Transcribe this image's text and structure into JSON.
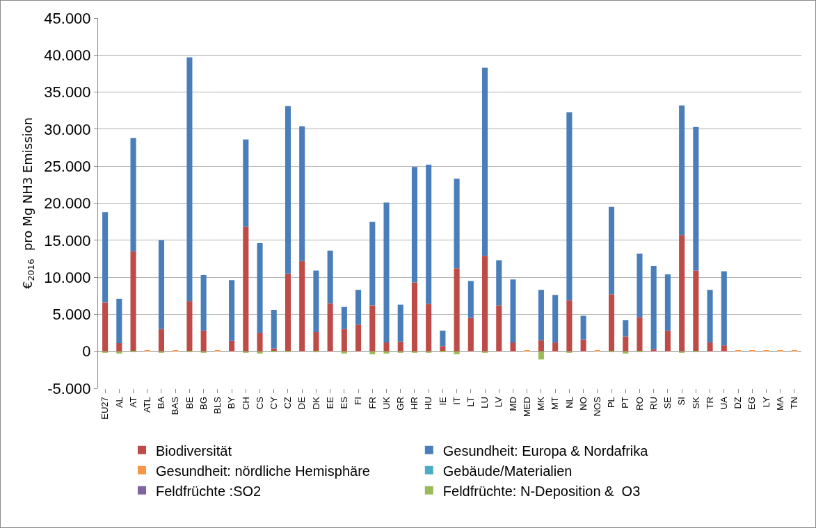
{
  "chart_data": {
    "type": "bar",
    "stacked": true,
    "ylabel": "€$_{2016}$  pro Mg NH3 Emission",
    "categories": [
      "EU27",
      "AL",
      "AT",
      "ATL",
      "BA",
      "BAS",
      "BE",
      "BG",
      "BLS",
      "BY",
      "CH",
      "CS",
      "CY",
      "CZ",
      "DE",
      "DK",
      "EE",
      "ES",
      "FI",
      "FR",
      "UK",
      "GR",
      "HR",
      "HU",
      "IE",
      "IT",
      "LT",
      "LU",
      "LV",
      "MD",
      "MED",
      "MK",
      "MT",
      "NL",
      "NO",
      "NOS",
      "PL",
      "PT",
      "RO",
      "RU",
      "SE",
      "SI",
      "SK",
      "TR",
      "UA",
      "DZ",
      "EG",
      "LY",
      "MA",
      "TN"
    ],
    "series": [
      {
        "name": "Biodiversität",
        "color": "#be4b48",
        "values": [
          6600,
          1100,
          13500,
          null,
          3000,
          null,
          6800,
          2800,
          null,
          1400,
          16800,
          2500,
          400,
          10500,
          12200,
          2600,
          6500,
          3000,
          3600,
          6200,
          1200,
          1300,
          9300,
          6400,
          700,
          11200,
          4500,
          12900,
          6200,
          1200,
          null,
          1500,
          1200,
          6900,
          1600,
          null,
          7700,
          2000,
          4600,
          300,
          2800,
          15700,
          10900,
          1200,
          800,
          null,
          null,
          null,
          null,
          null
        ]
      },
      {
        "name": "Gesundheit: Europa & Nordafrika",
        "color": "#4a7ebb",
        "values": [
          12200,
          6000,
          15300,
          null,
          12000,
          null,
          32900,
          7500,
          null,
          8200,
          11800,
          12100,
          5200,
          22600,
          18200,
          8300,
          7100,
          3000,
          4700,
          11300,
          18900,
          5000,
          15600,
          18800,
          2100,
          12100,
          5000,
          25400,
          6100,
          8500,
          null,
          6800,
          6400,
          25400,
          3200,
          null,
          11800,
          2200,
          8600,
          11200,
          7600,
          17500,
          19400,
          7100,
          10000,
          null,
          null,
          null,
          null,
          null
        ]
      },
      {
        "name": "Gesundheit: nördliche Hemisphäre",
        "color": "#f79646",
        "values": [
          null,
          null,
          null,
          100,
          null,
          100,
          null,
          null,
          100,
          null,
          null,
          null,
          null,
          null,
          null,
          null,
          null,
          null,
          null,
          null,
          null,
          null,
          null,
          null,
          null,
          null,
          null,
          null,
          null,
          null,
          100,
          null,
          null,
          null,
          null,
          100,
          null,
          null,
          null,
          null,
          null,
          null,
          null,
          null,
          null,
          100,
          100,
          100,
          100,
          100
        ]
      },
      {
        "name": "Gebäude/Materialien",
        "color": "#4bacc6",
        "values": [
          null,
          null,
          null,
          null,
          null,
          null,
          null,
          null,
          null,
          null,
          null,
          null,
          null,
          null,
          null,
          null,
          null,
          null,
          null,
          null,
          null,
          null,
          null,
          null,
          null,
          null,
          null,
          null,
          null,
          null,
          null,
          null,
          null,
          null,
          null,
          null,
          null,
          null,
          null,
          null,
          null,
          null,
          null,
          null,
          null,
          null,
          null,
          null,
          null,
          null
        ]
      },
      {
        "name": "Feldfrüchte :SO2",
        "color": "#8064a2",
        "values": [
          null,
          null,
          null,
          null,
          null,
          null,
          null,
          null,
          null,
          null,
          null,
          null,
          null,
          null,
          null,
          null,
          null,
          null,
          null,
          null,
          null,
          null,
          null,
          null,
          null,
          null,
          null,
          null,
          null,
          null,
          null,
          null,
          null,
          null,
          null,
          null,
          null,
          null,
          null,
          null,
          null,
          null,
          null,
          null,
          null,
          null,
          null,
          null,
          null,
          null
        ]
      },
      {
        "name": "Feldfrüchte: N-Deposition &  O3",
        "color": "#9bbb59",
        "values": [
          -200,
          -300,
          -100,
          null,
          -200,
          null,
          -100,
          -200,
          null,
          null,
          -200,
          -300,
          -100,
          -100,
          null,
          -100,
          null,
          -300,
          null,
          -400,
          -300,
          -200,
          -200,
          -200,
          -100,
          -400,
          null,
          -200,
          null,
          null,
          null,
          -1100,
          null,
          -200,
          null,
          null,
          -100,
          -300,
          -100,
          null,
          null,
          -200,
          -100,
          null,
          null,
          null,
          null,
          null,
          null,
          null
        ]
      }
    ],
    "ylim": [
      -5000,
      45000
    ],
    "yticks": [
      {
        "value": -5000,
        "label": "-5.000"
      },
      0,
      {
        "value": 5000,
        "label": "5.000"
      },
      {
        "value": 10000,
        "label": "10.000"
      },
      {
        "value": 15000,
        "label": "15.000"
      },
      {
        "value": 20000,
        "label": "20.000"
      },
      {
        "value": 25000,
        "label": "25.000"
      },
      {
        "value": 30000,
        "label": "30.000"
      },
      {
        "value": 35000,
        "label": "35.000"
      },
      {
        "value": 40000,
        "label": "40.000"
      },
      {
        "value": 45000,
        "label": "45.000"
      }
    ],
    "grid": "y",
    "legend": "bottom"
  }
}
